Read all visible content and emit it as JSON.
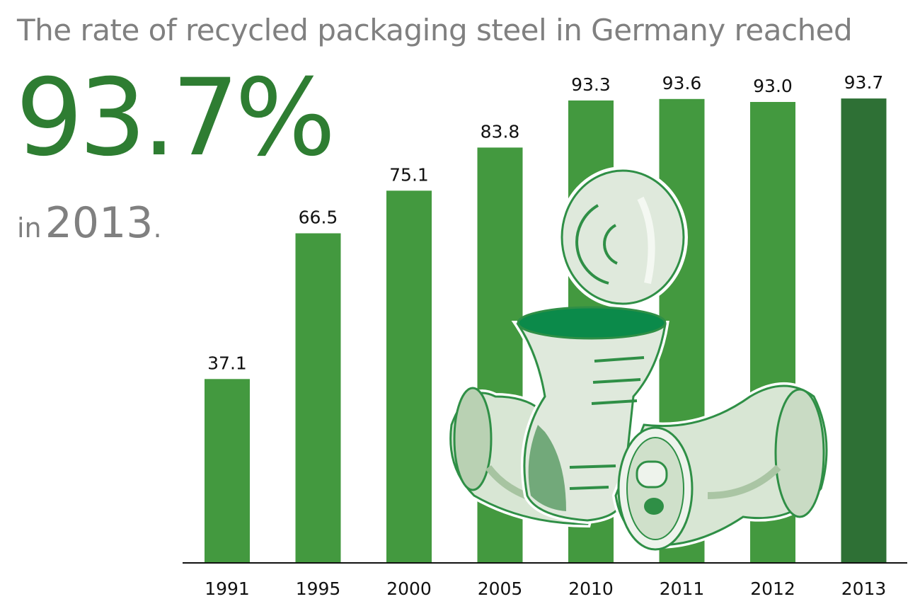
{
  "headline": "The rate of recycled packaging steel in Germany reached",
  "highlight_value": "93.7%",
  "highlight_prefix": "in",
  "highlight_year": "2013",
  "highlight_suffix": ".",
  "colors": {
    "bar": "#43993f",
    "bar_highlight": "#2e7035",
    "headline_text": "#808080",
    "highlight_text": "#2e7d32"
  },
  "illustration": "crushed-steel-cans-illustration",
  "chart_data": {
    "type": "bar",
    "categories": [
      "1991",
      "1995",
      "2000",
      "2005",
      "2010",
      "2011",
      "2012",
      "2013"
    ],
    "values": [
      37.1,
      66.5,
      75.1,
      83.8,
      93.3,
      93.6,
      93.0,
      93.7
    ],
    "value_labels": [
      "37.1",
      "66.5",
      "75.1",
      "83.8",
      "93.3",
      "93.6",
      "93.0",
      "93.7"
    ],
    "highlight_category": "2013",
    "ylim": [
      0,
      100
    ]
  }
}
